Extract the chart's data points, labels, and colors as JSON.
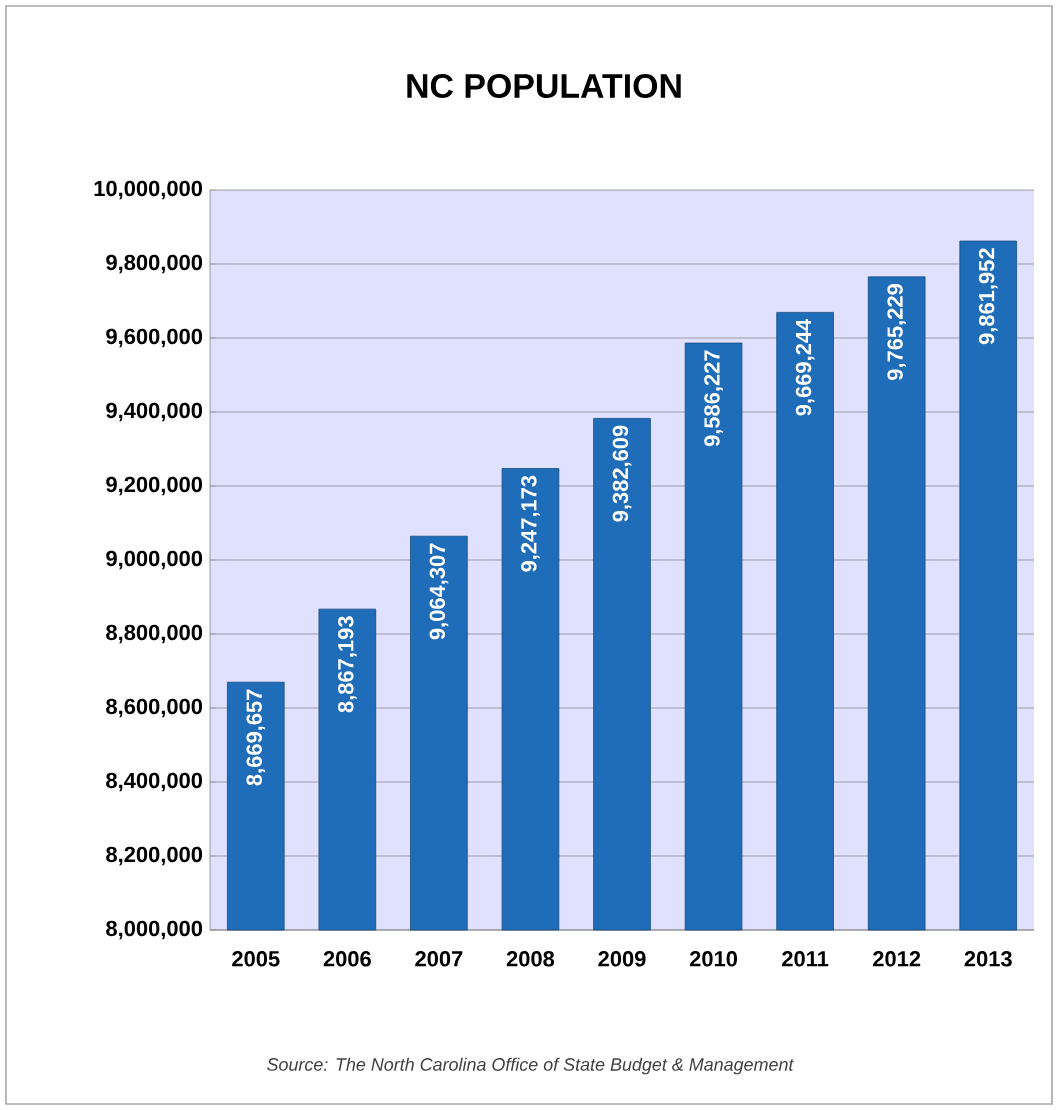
{
  "chart_data": {
    "type": "bar",
    "title": "NC POPULATION",
    "categories": [
      "2005",
      "2006",
      "2007",
      "2008",
      "2009",
      "2010",
      "2011",
      "2012",
      "2013"
    ],
    "values": [
      8669657,
      8867193,
      9064307,
      9247173,
      9382609,
      9586227,
      9669244,
      9765229,
      9861952
    ],
    "value_labels": [
      "8,669,657",
      "8,867,193",
      "9,064,307",
      "9,247,173",
      "9,382,609",
      "9,586,227",
      "9,669,244",
      "9,765,229",
      "9,861,952"
    ],
    "color": "#1f6cb8",
    "ylim": [
      8000000,
      10000000
    ],
    "yticks": [
      {
        "value": 8000000,
        "label": "8,000,000"
      },
      {
        "value": 8200000,
        "label": "8,200,000"
      },
      {
        "value": 8400000,
        "label": "8,400,000"
      },
      {
        "value": 8600000,
        "label": "8,600,000"
      },
      {
        "value": 8800000,
        "label": "8,800,000"
      },
      {
        "value": 9000000,
        "label": "9,000,000"
      },
      {
        "value": 9200000,
        "label": "9,200,000"
      },
      {
        "value": 9400000,
        "label": "9,400,000"
      },
      {
        "value": 9600000,
        "label": "9,600,000"
      },
      {
        "value": 9800000,
        "label": "9,800,000"
      },
      {
        "value": 10000000,
        "label": "10,000,000"
      }
    ],
    "grid": "y",
    "annotations": [
      "Source: The North Carolina Office of State Budget & Management"
    ]
  }
}
